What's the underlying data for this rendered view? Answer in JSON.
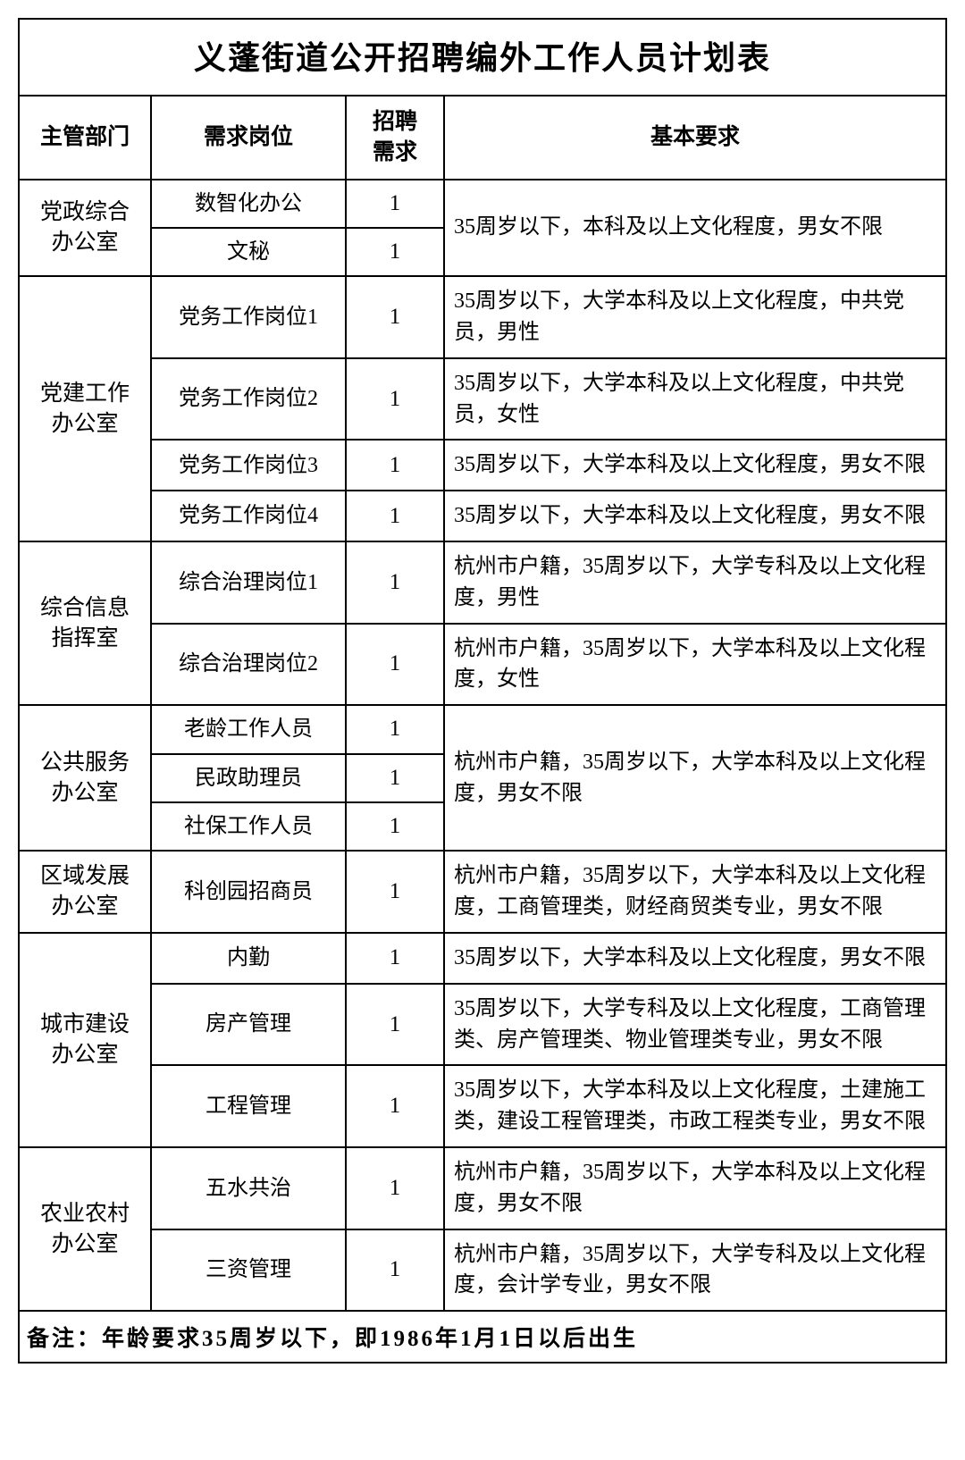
{
  "title": "义蓬街道公开招聘编外工作人员计划表",
  "columns": [
    "主管部门",
    "需求岗位",
    "招聘需求",
    "基本要求"
  ],
  "col3_break": true,
  "groups": [
    {
      "dept": "党政综合办公室",
      "reqGroups": [
        {
          "positions": [
            {
              "name": "数智化办公",
              "count": "1"
            },
            {
              "name": "文秘",
              "count": "1"
            }
          ],
          "req": "35周岁以下，本科及以上文化程度，男女不限"
        }
      ]
    },
    {
      "dept": "党建工作办公室",
      "reqGroups": [
        {
          "positions": [
            {
              "name": "党务工作岗位1",
              "count": "1"
            }
          ],
          "req": "35周岁以下，大学本科及以上文化程度，中共党员，男性"
        },
        {
          "positions": [
            {
              "name": "党务工作岗位2",
              "count": "1"
            }
          ],
          "req": "35周岁以下，大学本科及以上文化程度，中共党员，女性"
        },
        {
          "positions": [
            {
              "name": "党务工作岗位3",
              "count": "1"
            }
          ],
          "req": "35周岁以下，大学本科及以上文化程度，男女不限"
        },
        {
          "positions": [
            {
              "name": "党务工作岗位4",
              "count": "1"
            }
          ],
          "req": "35周岁以下，大学本科及以上文化程度，男女不限"
        }
      ]
    },
    {
      "dept": "综合信息指挥室",
      "reqGroups": [
        {
          "positions": [
            {
              "name": "综合治理岗位1",
              "count": "1"
            }
          ],
          "req": "杭州市户籍，35周岁以下，大学专科及以上文化程度，男性"
        },
        {
          "positions": [
            {
              "name": "综合治理岗位2",
              "count": "1"
            }
          ],
          "req": "杭州市户籍，35周岁以下，大学本科及以上文化程度，女性"
        }
      ]
    },
    {
      "dept": "公共服务办公室",
      "reqGroups": [
        {
          "positions": [
            {
              "name": "老龄工作人员",
              "count": "1"
            },
            {
              "name": "民政助理员",
              "count": "1"
            },
            {
              "name": "社保工作人员",
              "count": "1"
            }
          ],
          "req": "杭州市户籍，35周岁以下，大学本科及以上文化程度，男女不限"
        }
      ]
    },
    {
      "dept": "区域发展办公室",
      "reqGroups": [
        {
          "positions": [
            {
              "name": "科创园招商员",
              "count": "1"
            }
          ],
          "req": "杭州市户籍，35周岁以下，大学本科及以上文化程度，工商管理类，财经商贸类专业，男女不限"
        }
      ]
    },
    {
      "dept": "城市建设办公室",
      "reqGroups": [
        {
          "positions": [
            {
              "name": "内勤",
              "count": "1"
            }
          ],
          "req": "35周岁以下，大学本科及以上文化程度，男女不限"
        },
        {
          "positions": [
            {
              "name": "房产管理",
              "count": "1"
            }
          ],
          "req": "35周岁以下，大学专科及以上文化程度，工商管理类、房产管理类、物业管理类专业，男女不限"
        },
        {
          "positions": [
            {
              "name": "工程管理",
              "count": "1"
            }
          ],
          "req": "35周岁以下，大学本科及以上文化程度，土建施工类，建设工程管理类，市政工程类专业，男女不限"
        }
      ]
    },
    {
      "dept": "农业农村办公室",
      "reqGroups": [
        {
          "positions": [
            {
              "name": "五水共治",
              "count": "1"
            }
          ],
          "req": "杭州市户籍，35周岁以下，大学本科及以上文化程度，男女不限",
          "extraHeight": 90
        },
        {
          "positions": [
            {
              "name": "三资管理",
              "count": "1"
            }
          ],
          "req": "杭州市户籍，35周岁以下，大学专科及以上文化程度，会计学专业，男女不限"
        }
      ]
    }
  ],
  "note": "备注：年龄要求35周岁以下，即1986年1月1日以后出生",
  "style": {
    "border_color": "#000000",
    "background": "#ffffff",
    "title_fontsize": 36,
    "header_fontsize": 25,
    "body_fontsize": 24
  }
}
